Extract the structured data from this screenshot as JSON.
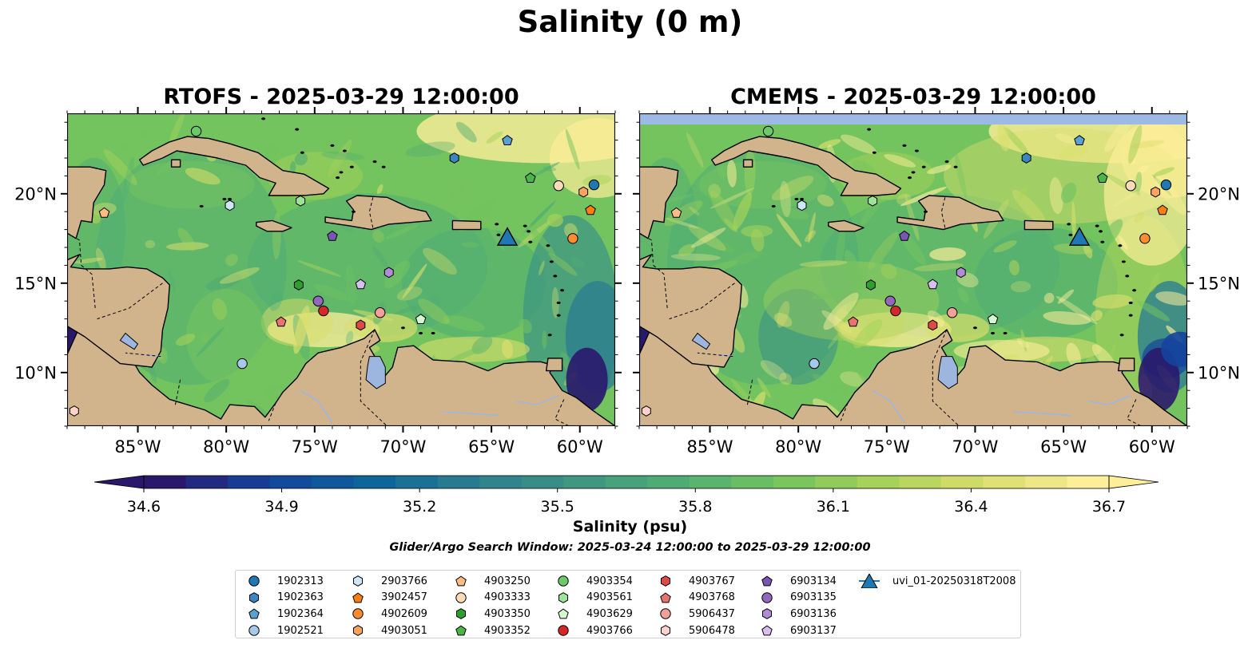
{
  "figure": {
    "title": "Salinity (0 m)",
    "panels": [
      {
        "title": "RTOFS - 2025-03-29 12:00:00",
        "model": "rtofs"
      },
      {
        "title": "CMEMS - 2025-03-29 12:00:00",
        "model": "cmems"
      }
    ],
    "lon_ticks": [
      "85°W",
      "80°W",
      "75°W",
      "70°W",
      "65°W",
      "60°W"
    ],
    "lat_ticks": [
      "20°N",
      "15°N",
      "10°N"
    ],
    "extent": {
      "lon": [
        -89,
        -58
      ],
      "lat": [
        7,
        24.5
      ]
    },
    "colorbar": {
      "label": "Salinity (psu)",
      "ticks": [
        "34.6",
        "34.9",
        "35.2",
        "35.5",
        "35.8",
        "36.1",
        "36.4",
        "36.7"
      ],
      "range": [
        34.6,
        36.7
      ],
      "colormap": "haline"
    },
    "search_window": "Glider/Argo Search Window: 2025-03-24 12:00:00 to 2025-03-29 12:00:00"
  },
  "colors": {
    "land": "#d2b48c",
    "lakes": "#9db6e0",
    "cmems_nodata": "#9db9e6",
    "haline": [
      "#2a186c",
      "#14439c",
      "#0d649a",
      "#2c7e8e",
      "#3d9582",
      "#50ad73",
      "#73c35f",
      "#a8d25a",
      "#d9de6c",
      "#fdee99"
    ]
  },
  "legend": [
    {
      "label": "1902313",
      "marker": "circle",
      "color": "#1f77b4"
    },
    {
      "label": "1902363",
      "marker": "hexagon",
      "color": "#3a85c2"
    },
    {
      "label": "1902364",
      "marker": "pentagon",
      "color": "#5aa0d3"
    },
    {
      "label": "1902521",
      "marker": "circle",
      "color": "#a6c8ea"
    },
    {
      "label": "2903766",
      "marker": "hexagon",
      "color": "#cfe6f7"
    },
    {
      "label": "3902457",
      "marker": "pentagon",
      "color": "#ff7f0e"
    },
    {
      "label": "4902609",
      "marker": "circle",
      "color": "#ff8c2e"
    },
    {
      "label": "4903051",
      "marker": "hexagon",
      "color": "#ffa45c"
    },
    {
      "label": "4903250",
      "marker": "pentagon",
      "color": "#ffbd85"
    },
    {
      "label": "4903333",
      "marker": "circle",
      "color": "#ffdcb8"
    },
    {
      "label": "4903350",
      "marker": "hexagon",
      "color": "#2ca02c"
    },
    {
      "label": "4903352",
      "marker": "pentagon",
      "color": "#4cb548"
    },
    {
      "label": "4903354",
      "marker": "circle",
      "color": "#6cc96a"
    },
    {
      "label": "4903561",
      "marker": "hexagon",
      "color": "#9ee39a"
    },
    {
      "label": "4903629",
      "marker": "pentagon",
      "color": "#d4f7cf"
    },
    {
      "label": "4903766",
      "marker": "circle",
      "color": "#d62728"
    },
    {
      "label": "4903767",
      "marker": "hexagon",
      "color": "#dc4a48"
    },
    {
      "label": "4903768",
      "marker": "pentagon",
      "color": "#e8736e"
    },
    {
      "label": "5906437",
      "marker": "circle",
      "color": "#f4a09a"
    },
    {
      "label": "5906478",
      "marker": "hexagon",
      "color": "#fcd2cd"
    },
    {
      "label": "6903134",
      "marker": "pentagon",
      "color": "#7b55b5"
    },
    {
      "label": "6903135",
      "marker": "circle",
      "color": "#9467bd"
    },
    {
      "label": "6903136",
      "marker": "hexagon",
      "color": "#b08bd8"
    },
    {
      "label": "6903137",
      "marker": "pentagon",
      "color": "#d8bff0"
    },
    {
      "label": "uvi_01-20250318T2008",
      "marker": "triangle",
      "color": "#1f77b4"
    }
  ],
  "markers": [
    {
      "label": "1902313",
      "lon": -59.2,
      "lat": 20.5
    },
    {
      "label": "1902363",
      "lon": -67.1,
      "lat": 22.0
    },
    {
      "label": "1902364",
      "lon": -64.1,
      "lat": 23.0
    },
    {
      "label": "1902521",
      "lon": -79.1,
      "lat": 10.5
    },
    {
      "label": "2903766",
      "lon": -79.8,
      "lat": 19.35
    },
    {
      "label": "3902457",
      "lon": -59.4,
      "lat": 19.1
    },
    {
      "label": "4902609",
      "lon": -60.4,
      "lat": 17.5
    },
    {
      "label": "4903051",
      "lon": -59.8,
      "lat": 20.1
    },
    {
      "label": "4903250",
      "lon": -86.9,
      "lat": 18.95
    },
    {
      "label": "4903333",
      "lon": -61.2,
      "lat": 20.45
    },
    {
      "label": "4903350",
      "lon": -75.9,
      "lat": 14.9
    },
    {
      "label": "4903352",
      "lon": -62.8,
      "lat": 20.9
    },
    {
      "label": "4903354",
      "lon": -81.7,
      "lat": 23.5
    },
    {
      "label": "4903561",
      "lon": -75.8,
      "lat": 19.6
    },
    {
      "label": "4903629",
      "lon": -69.0,
      "lat": 13.0
    },
    {
      "label": "4903766",
      "lon": -74.5,
      "lat": 13.45
    },
    {
      "label": "4903767",
      "lon": -72.4,
      "lat": 12.65
    },
    {
      "label": "4903768",
      "lon": -76.9,
      "lat": 12.85
    },
    {
      "label": "5906437",
      "lon": -71.3,
      "lat": 13.35
    },
    {
      "label": "5906478",
      "lon": -88.6,
      "lat": 7.85
    },
    {
      "label": "6903134",
      "lon": -74.0,
      "lat": 17.65
    },
    {
      "label": "6903135",
      "lon": -74.8,
      "lat": 14.0
    },
    {
      "label": "6903136",
      "lon": -70.8,
      "lat": 15.6
    },
    {
      "label": "6903137",
      "lon": -72.4,
      "lat": 14.95
    },
    {
      "label": "uvi_01-20250318T2008",
      "lon": -64.1,
      "lat": 17.55
    }
  ]
}
